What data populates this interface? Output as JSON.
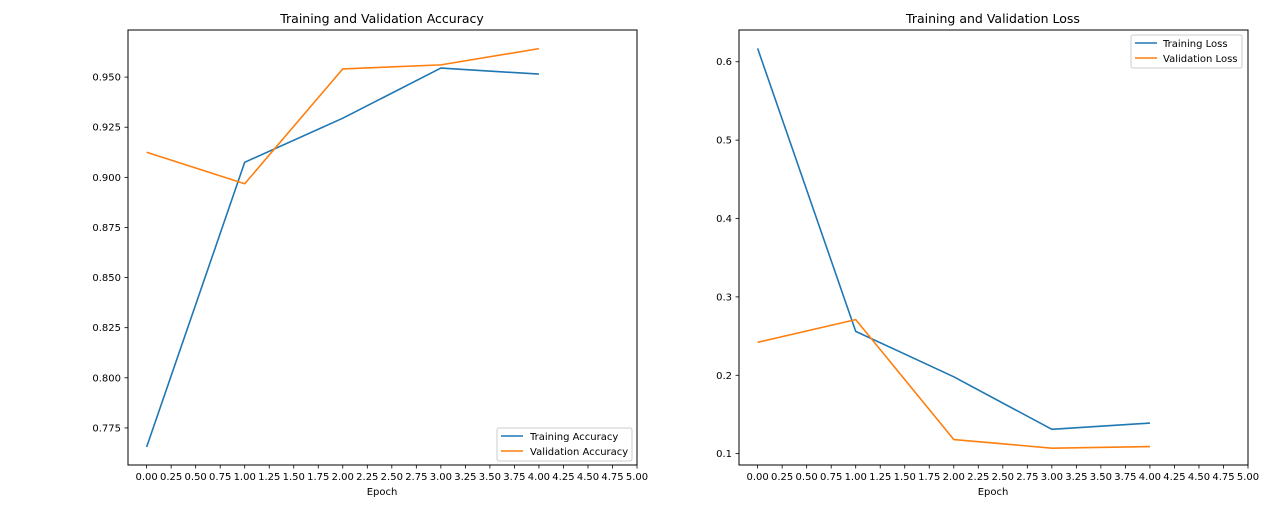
{
  "chart_data": [
    {
      "type": "line",
      "title": "Training and Validation Accuracy",
      "xlabel": "Epoch",
      "ylabel": "",
      "xlim": [
        -0.19,
        5.0
      ],
      "ylim": [
        0.7565,
        0.9735
      ],
      "x_ticks": [
        0.0,
        0.25,
        0.5,
        0.75,
        1.0,
        1.25,
        1.5,
        1.75,
        2.0,
        2.25,
        2.5,
        2.75,
        3.0,
        3.25,
        3.5,
        3.75,
        4.0,
        4.25,
        4.5,
        4.75,
        5.0
      ],
      "x_tick_labels": [
        "0.00",
        "0.25",
        "0.50",
        "0.75",
        "1.00",
        "1.25",
        "1.50",
        "1.75",
        "2.00",
        "2.25",
        "2.50",
        "2.75",
        "3.00",
        "3.25",
        "3.50",
        "3.75",
        "4.00",
        "4.25",
        "4.50",
        "4.75",
        "5.00"
      ],
      "y_ticks": [
        0.775,
        0.8,
        0.825,
        0.85,
        0.875,
        0.9,
        0.925,
        0.95
      ],
      "y_tick_labels": [
        "0.775",
        "0.800",
        "0.825",
        "0.850",
        "0.875",
        "0.900",
        "0.925",
        "0.950"
      ],
      "grid": false,
      "legend_position": "lower right",
      "x": [
        0,
        1,
        2,
        3,
        4
      ],
      "series": [
        {
          "name": "Training Accuracy",
          "color": "#1f77b4",
          "values": [
            0.7655,
            0.9075,
            0.9295,
            0.9545,
            0.9515
          ]
        },
        {
          "name": "Validation Accuracy",
          "color": "#ff7f0e",
          "values": [
            0.9125,
            0.8968,
            0.9541,
            0.9561,
            0.9642
          ]
        }
      ]
    },
    {
      "type": "line",
      "title": "Training and Validation Loss",
      "xlabel": "Epoch",
      "ylabel": "",
      "xlim": [
        -0.19,
        5.0
      ],
      "ylim": [
        0.0855,
        0.6405
      ],
      "x_ticks": [
        0.0,
        0.25,
        0.5,
        0.75,
        1.0,
        1.25,
        1.5,
        1.75,
        2.0,
        2.25,
        2.5,
        2.75,
        3.0,
        3.25,
        3.5,
        3.75,
        4.0,
        4.25,
        4.5,
        4.75,
        5.0
      ],
      "x_tick_labels": [
        "0.00",
        "0.25",
        "0.50",
        "0.75",
        "1.00",
        "1.25",
        "1.50",
        "1.75",
        "2.00",
        "2.25",
        "2.50",
        "2.75",
        "3.00",
        "3.25",
        "3.50",
        "3.75",
        "4.00",
        "4.25",
        "4.50",
        "4.75",
        "5.00"
      ],
      "y_ticks": [
        0.1,
        0.2,
        0.3,
        0.4,
        0.5,
        0.6
      ],
      "y_tick_labels": [
        "0.1",
        "0.2",
        "0.3",
        "0.4",
        "0.5",
        "0.6"
      ],
      "grid": false,
      "legend_position": "upper right",
      "x": [
        0,
        1,
        2,
        3,
        4
      ],
      "series": [
        {
          "name": "Training Loss",
          "color": "#1f77b4",
          "values": [
            0.617,
            0.256,
            0.198,
            0.131,
            0.139
          ]
        },
        {
          "name": "Validation Loss",
          "color": "#ff7f0e",
          "values": [
            0.242,
            0.271,
            0.118,
            0.107,
            0.109
          ]
        }
      ]
    }
  ]
}
